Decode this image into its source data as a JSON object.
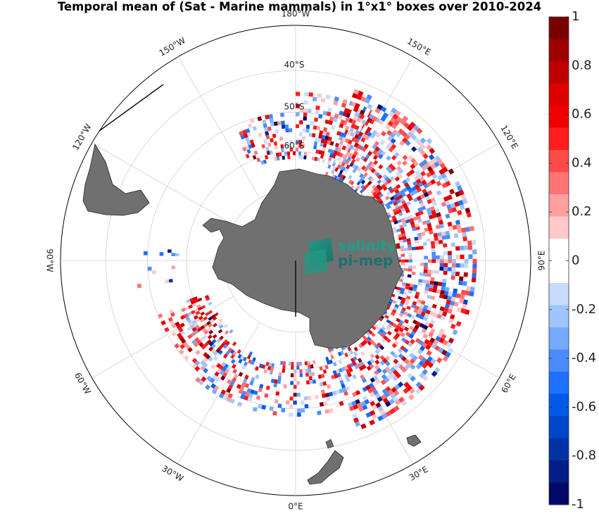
{
  "title": "Temporal mean of (Sat - Marine mammals) in 1°x1° boxes over 2010-2024",
  "logo": {
    "line1": "salinity",
    "line2": "pi-mep"
  },
  "colorbar": {
    "ticks": [
      "1",
      "0.8",
      "0.6",
      "0.4",
      "0.2",
      "0",
      "-0.2",
      "-0.4",
      "-0.6",
      "-0.8",
      "-1"
    ],
    "range": [
      -1,
      1
    ],
    "colors": [
      "#7a0000",
      "#9e0000",
      "#bf0000",
      "#dc0000",
      "#f00000",
      "#ff1e1e",
      "#ff4a4a",
      "#ff7575",
      "#ff9f9f",
      "#ffc9c9",
      "#ffffff",
      "#ffffff",
      "#c8dcff",
      "#9fc5ff",
      "#75aaff",
      "#4a8cff",
      "#1e70ff",
      "#005ae6",
      "#0046c8",
      "#0032a6",
      "#001e85",
      "#000a66"
    ]
  },
  "longitude_labels": [
    {
      "text": "0°E",
      "lon": 0
    },
    {
      "text": "30°E",
      "lon": 30
    },
    {
      "text": "60°E",
      "lon": 60
    },
    {
      "text": "90°E",
      "lon": 90
    },
    {
      "text": "120°E",
      "lon": 120
    },
    {
      "text": "150°E",
      "lon": 150
    },
    {
      "text": "180°W",
      "lon": 180
    },
    {
      "text": "150°W",
      "lon": -150
    },
    {
      "text": "120°W",
      "lon": -120
    },
    {
      "text": "90°W",
      "lon": -90
    },
    {
      "text": "60°W",
      "lon": -60
    },
    {
      "text": "30°W",
      "lon": -30
    }
  ],
  "latitude_labels": [
    {
      "text": "60°S",
      "lat": -60
    },
    {
      "text": "50°S",
      "lat": -50
    },
    {
      "text": "40°S",
      "lat": -40
    }
  ],
  "chart_data": {
    "type": "heatmap",
    "projection": "south-polar-stereographic",
    "grid": true,
    "value_range": [
      -1,
      1
    ],
    "regions": [
      {
        "lon_range": [
          20,
          160
        ],
        "lat_range": [
          -68,
          -42
        ],
        "density": 0.55,
        "bias": 0.1
      },
      {
        "lon_range": [
          -70,
          -40
        ],
        "lat_range": [
          -64,
          -50
        ],
        "density": 0.5,
        "bias": 0.3
      },
      {
        "lon_range": [
          -40,
          20
        ],
        "lat_range": [
          -62,
          -48
        ],
        "density": 0.35,
        "bias": 0.0
      },
      {
        "lon_range": [
          150,
          180
        ],
        "lat_range": [
          -62,
          -45
        ],
        "density": 0.5,
        "bias": 0.15
      },
      {
        "lon_range": [
          -180,
          -155
        ],
        "lat_range": [
          -62,
          -50
        ],
        "density": 0.45,
        "bias": 0.1
      },
      {
        "lon_range": [
          -95,
          -80
        ],
        "lat_range": [
          -58,
          -46
        ],
        "density": 0.15,
        "bias": -0.3
      }
    ]
  }
}
